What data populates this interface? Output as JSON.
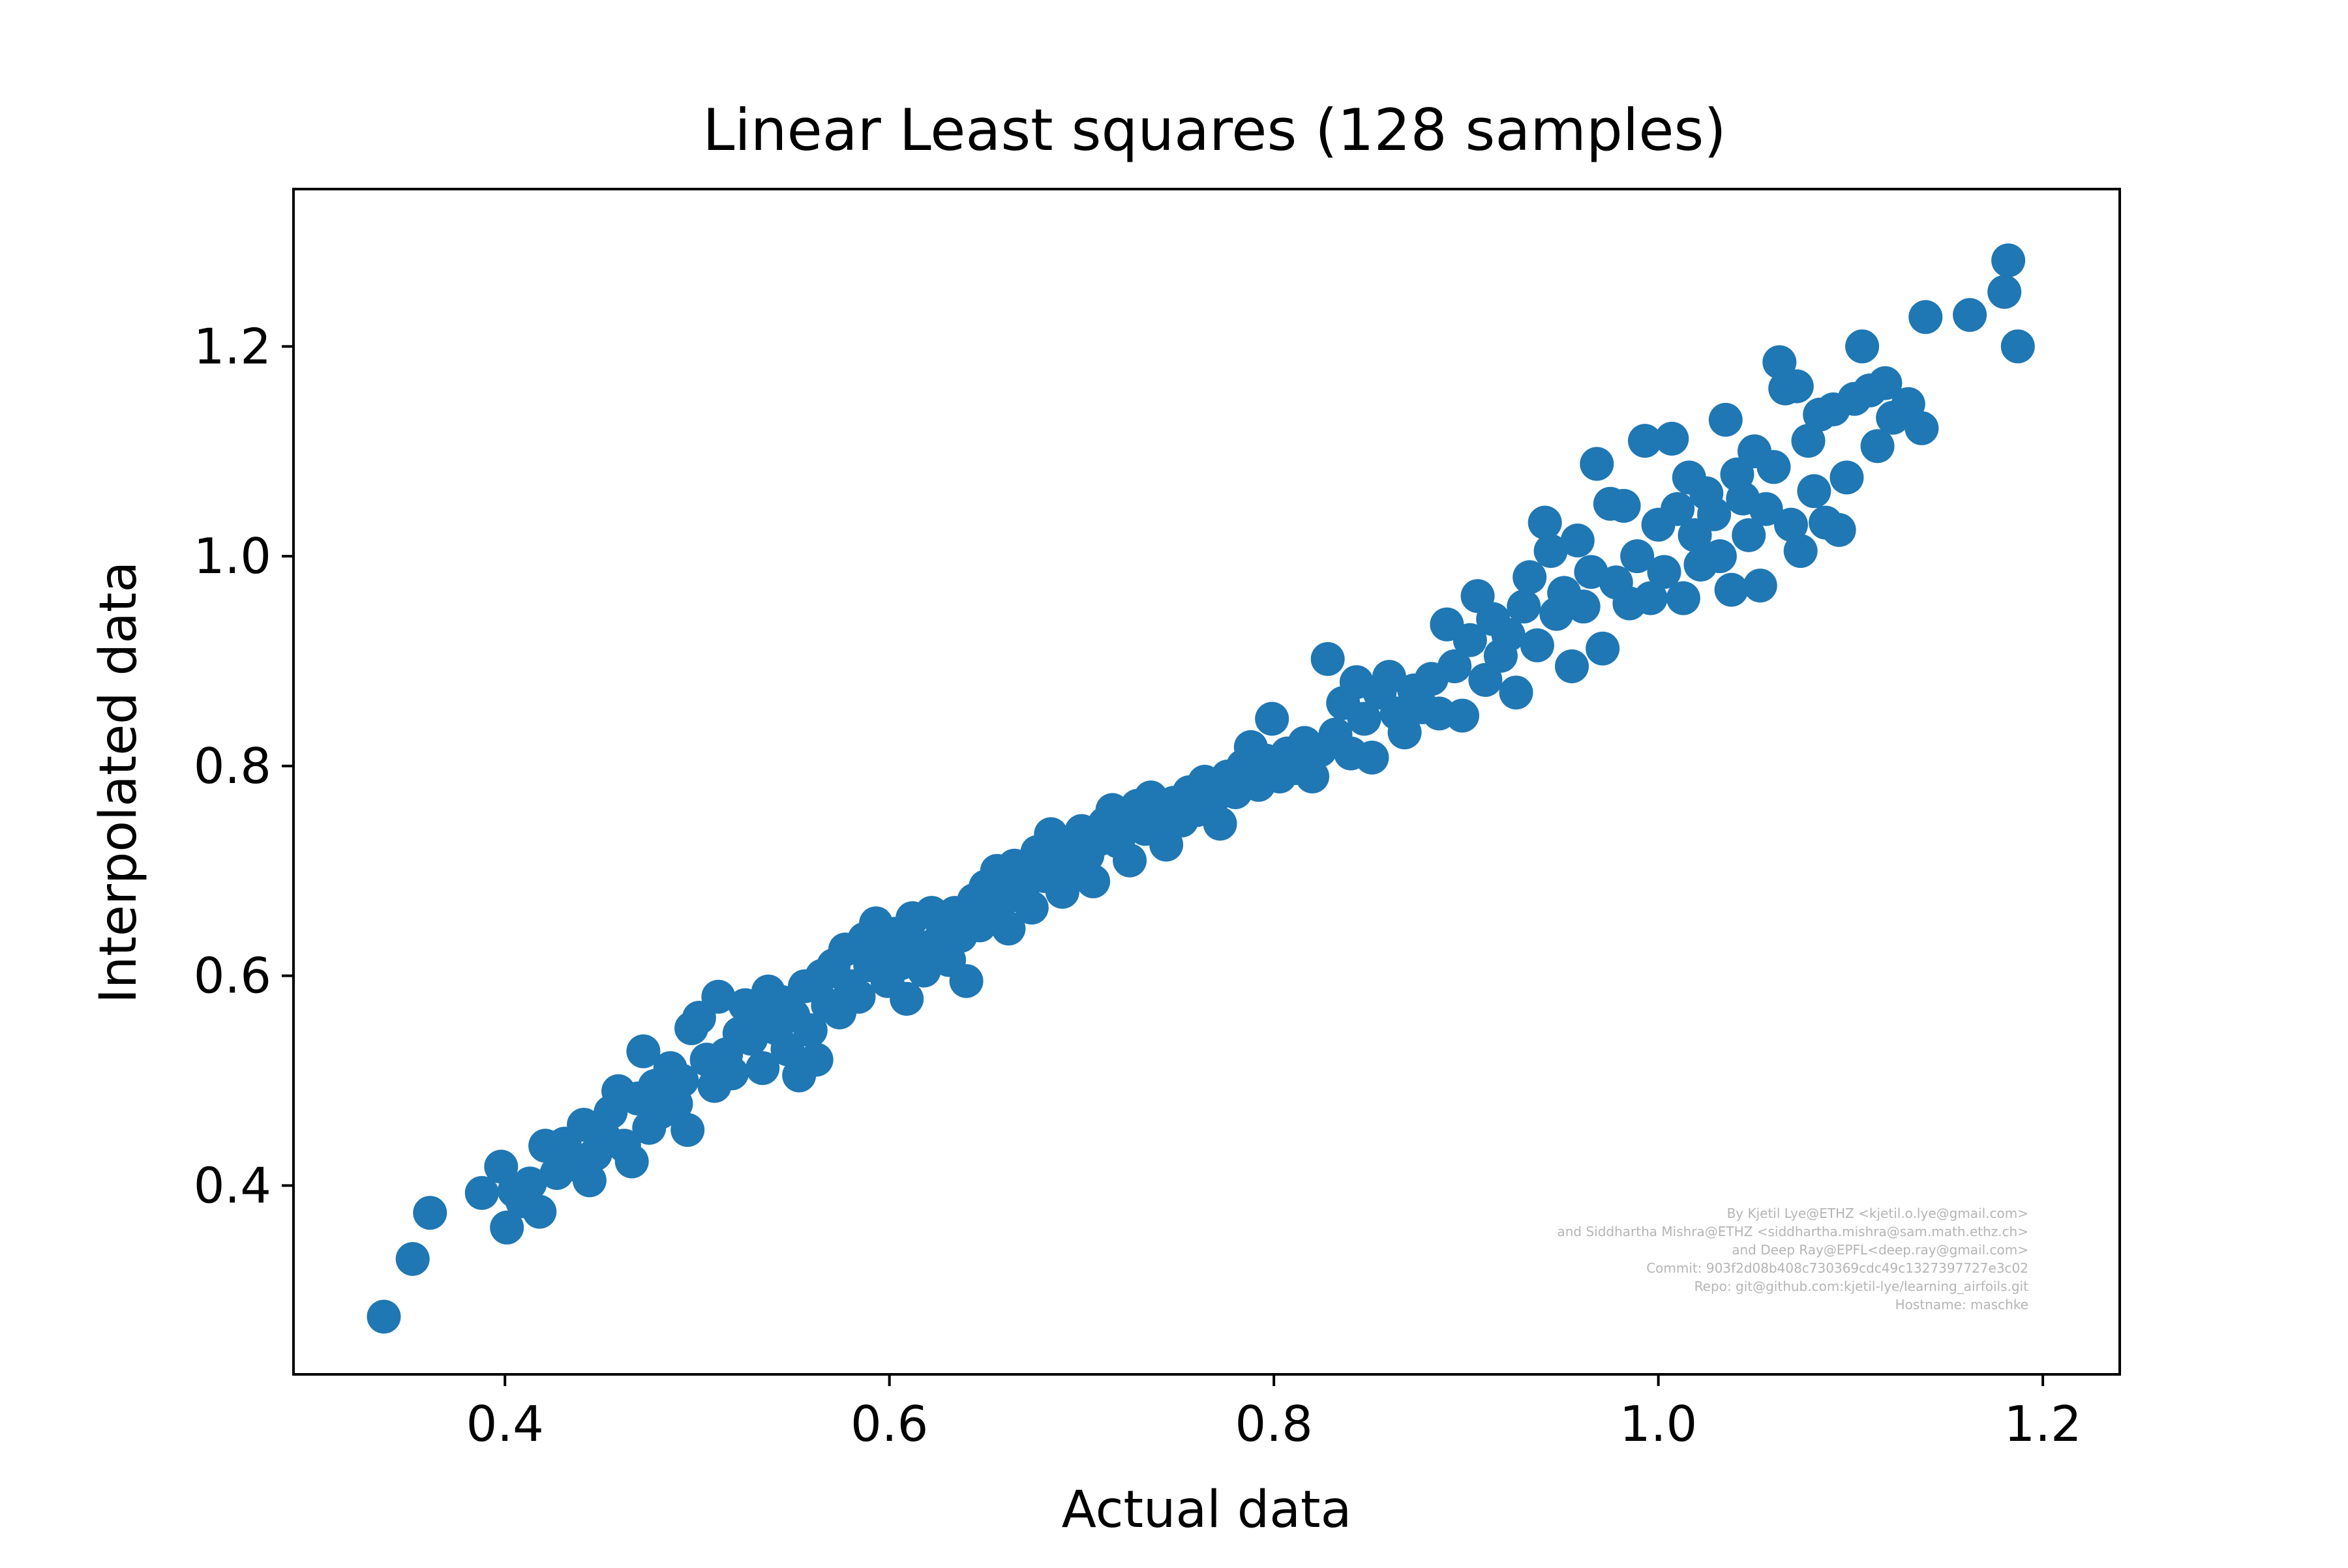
{
  "chart_data": {
    "type": "scatter",
    "title": "Linear Least squares (128 samples)",
    "xlabel": "Actual data",
    "ylabel": "Interpolated data",
    "xlim": [
      0.29,
      1.24
    ],
    "ylim": [
      0.22,
      1.35
    ],
    "xticks": [
      "0.4",
      "0.6",
      "0.8",
      "1.0",
      "1.2"
    ],
    "yticks": [
      "0.4",
      "0.6",
      "0.8",
      "1.0",
      "1.2"
    ],
    "grid": false,
    "legend": "none",
    "series": [
      {
        "color": "#1f77b4",
        "points": [
          [
            0.337,
            0.275
          ],
          [
            0.352,
            0.33
          ],
          [
            0.361,
            0.374
          ],
          [
            0.388,
            0.393
          ],
          [
            0.398,
            0.418
          ],
          [
            0.401,
            0.36
          ],
          [
            0.405,
            0.395
          ],
          [
            0.409,
            0.385
          ],
          [
            0.413,
            0.402
          ],
          [
            0.418,
            0.375
          ],
          [
            0.421,
            0.438
          ],
          [
            0.427,
            0.412
          ],
          [
            0.431,
            0.44
          ],
          [
            0.436,
            0.42
          ],
          [
            0.441,
            0.458
          ],
          [
            0.444,
            0.405
          ],
          [
            0.447,
            0.43
          ],
          [
            0.452,
            0.445
          ],
          [
            0.455,
            0.47
          ],
          [
            0.459,
            0.49
          ],
          [
            0.462,
            0.438
          ],
          [
            0.466,
            0.423
          ],
          [
            0.469,
            0.483
          ],
          [
            0.472,
            0.528
          ],
          [
            0.475,
            0.455
          ],
          [
            0.478,
            0.495
          ],
          [
            0.481,
            0.47
          ],
          [
            0.486,
            0.512
          ],
          [
            0.489,
            0.478
          ],
          [
            0.492,
            0.5
          ],
          [
            0.495,
            0.453
          ],
          [
            0.497,
            0.55
          ],
          [
            0.501,
            0.56
          ],
          [
            0.505,
            0.52
          ],
          [
            0.509,
            0.495
          ],
          [
            0.511,
            0.58
          ],
          [
            0.515,
            0.525
          ],
          [
            0.518,
            0.507
          ],
          [
            0.522,
            0.545
          ],
          [
            0.525,
            0.572
          ],
          [
            0.528,
            0.54
          ],
          [
            0.531,
            0.563
          ],
          [
            0.534,
            0.512
          ],
          [
            0.537,
            0.585
          ],
          [
            0.541,
            0.55
          ],
          [
            0.544,
            0.575
          ],
          [
            0.547,
            0.53
          ],
          [
            0.55,
            0.562
          ],
          [
            0.553,
            0.505
          ],
          [
            0.556,
            0.59
          ],
          [
            0.559,
            0.548
          ],
          [
            0.562,
            0.52
          ],
          [
            0.565,
            0.6
          ],
          [
            0.568,
            0.572
          ],
          [
            0.571,
            0.61
          ],
          [
            0.574,
            0.565
          ],
          [
            0.577,
            0.625
          ],
          [
            0.58,
            0.59
          ],
          [
            0.584,
            0.58
          ],
          [
            0.587,
            0.635
          ],
          [
            0.59,
            0.61
          ],
          [
            0.593,
            0.65
          ],
          [
            0.596,
            0.618
          ],
          [
            0.599,
            0.595
          ],
          [
            0.603,
            0.64
          ],
          [
            0.606,
            0.612
          ],
          [
            0.609,
            0.578
          ],
          [
            0.612,
            0.655
          ],
          [
            0.615,
            0.628
          ],
          [
            0.618,
            0.605
          ],
          [
            0.622,
            0.66
          ],
          [
            0.625,
            0.632
          ],
          [
            0.628,
            0.645
          ],
          [
            0.631,
            0.615
          ],
          [
            0.634,
            0.66
          ],
          [
            0.637,
            0.638
          ],
          [
            0.64,
            0.595
          ],
          [
            0.644,
            0.672
          ],
          [
            0.647,
            0.648
          ],
          [
            0.65,
            0.685
          ],
          [
            0.653,
            0.66
          ],
          [
            0.656,
            0.7
          ],
          [
            0.659,
            0.672
          ],
          [
            0.662,
            0.645
          ],
          [
            0.665,
            0.705
          ],
          [
            0.668,
            0.68
          ],
          [
            0.671,
            0.69
          ],
          [
            0.674,
            0.665
          ],
          [
            0.677,
            0.718
          ],
          [
            0.681,
            0.695
          ],
          [
            0.684,
            0.735
          ],
          [
            0.687,
            0.705
          ],
          [
            0.69,
            0.68
          ],
          [
            0.693,
            0.725
          ],
          [
            0.697,
            0.702
          ],
          [
            0.7,
            0.738
          ],
          [
            0.703,
            0.715
          ],
          [
            0.706,
            0.69
          ],
          [
            0.709,
            0.73
          ],
          [
            0.712,
            0.745
          ],
          [
            0.716,
            0.758
          ],
          [
            0.719,
            0.728
          ],
          [
            0.722,
            0.745
          ],
          [
            0.725,
            0.71
          ],
          [
            0.729,
            0.762
          ],
          [
            0.733,
            0.74
          ],
          [
            0.736,
            0.77
          ],
          [
            0.74,
            0.755
          ],
          [
            0.744,
            0.725
          ],
          [
            0.748,
            0.765
          ],
          [
            0.752,
            0.748
          ],
          [
            0.756,
            0.775
          ],
          [
            0.76,
            0.758
          ],
          [
            0.764,
            0.785
          ],
          [
            0.768,
            0.768
          ],
          [
            0.772,
            0.745
          ],
          [
            0.776,
            0.79
          ],
          [
            0.78,
            0.775
          ],
          [
            0.784,
            0.8
          ],
          [
            0.788,
            0.818
          ],
          [
            0.792,
            0.782
          ],
          [
            0.796,
            0.805
          ],
          [
            0.799,
            0.845
          ],
          [
            0.803,
            0.79
          ],
          [
            0.807,
            0.812
          ],
          [
            0.811,
            0.798
          ],
          [
            0.816,
            0.822
          ],
          [
            0.82,
            0.79
          ],
          [
            0.824,
            0.815
          ],
          [
            0.828,
            0.902
          ],
          [
            0.832,
            0.83
          ],
          [
            0.836,
            0.86
          ],
          [
            0.84,
            0.812
          ],
          [
            0.843,
            0.88
          ],
          [
            0.847,
            0.845
          ],
          [
            0.851,
            0.808
          ],
          [
            0.855,
            0.87
          ],
          [
            0.86,
            0.885
          ],
          [
            0.864,
            0.85
          ],
          [
            0.868,
            0.832
          ],
          [
            0.873,
            0.872
          ],
          [
            0.877,
            0.856
          ],
          [
            0.882,
            0.883
          ],
          [
            0.886,
            0.85
          ],
          [
            0.89,
            0.935
          ],
          [
            0.894,
            0.895
          ],
          [
            0.898,
            0.848
          ],
          [
            0.902,
            0.92
          ],
          [
            0.906,
            0.962
          ],
          [
            0.91,
            0.882
          ],
          [
            0.914,
            0.94
          ],
          [
            0.918,
            0.905
          ],
          [
            0.922,
            0.925
          ],
          [
            0.926,
            0.87
          ],
          [
            0.93,
            0.952
          ],
          [
            0.933,
            0.98
          ],
          [
            0.937,
            0.915
          ],
          [
            0.941,
            1.032
          ],
          [
            0.944,
            1.005
          ],
          [
            0.947,
            0.945
          ],
          [
            0.951,
            0.965
          ],
          [
            0.955,
            0.895
          ],
          [
            0.958,
            1.015
          ],
          [
            0.961,
            0.952
          ],
          [
            0.965,
            0.985
          ],
          [
            0.968,
            1.088
          ],
          [
            0.971,
            0.912
          ],
          [
            0.975,
            1.05
          ],
          [
            0.978,
            0.975
          ],
          [
            0.982,
            1.048
          ],
          [
            0.985,
            0.955
          ],
          [
            0.989,
            1.0
          ],
          [
            0.993,
            1.11
          ],
          [
            0.996,
            0.96
          ],
          [
            1.0,
            1.03
          ],
          [
            1.003,
            0.985
          ],
          [
            1.007,
            1.112
          ],
          [
            1.01,
            1.045
          ],
          [
            1.013,
            0.96
          ],
          [
            1.016,
            1.075
          ],
          [
            1.019,
            1.02
          ],
          [
            1.022,
            0.992
          ],
          [
            1.025,
            1.06
          ],
          [
            1.029,
            1.04
          ],
          [
            1.032,
            1.0
          ],
          [
            1.035,
            1.13
          ],
          [
            1.038,
            0.968
          ],
          [
            1.041,
            1.078
          ],
          [
            1.044,
            1.055
          ],
          [
            1.047,
            1.02
          ],
          [
            1.05,
            1.1
          ],
          [
            1.053,
            0.972
          ],
          [
            1.056,
            1.045
          ],
          [
            1.06,
            1.085
          ],
          [
            1.063,
            1.185
          ],
          [
            1.066,
            1.16
          ],
          [
            1.069,
            1.03
          ],
          [
            1.072,
            1.162
          ],
          [
            1.074,
            1.005
          ],
          [
            1.078,
            1.11
          ],
          [
            1.081,
            1.062
          ],
          [
            1.084,
            1.135
          ],
          [
            1.087,
            1.032
          ],
          [
            1.091,
            1.14
          ],
          [
            1.094,
            1.025
          ],
          [
            1.098,
            1.075
          ],
          [
            1.102,
            1.15
          ],
          [
            1.106,
            1.2
          ],
          [
            1.11,
            1.158
          ],
          [
            1.114,
            1.105
          ],
          [
            1.118,
            1.165
          ],
          [
            1.122,
            1.132
          ],
          [
            1.13,
            1.145
          ],
          [
            1.137,
            1.122
          ],
          [
            1.139,
            1.228
          ],
          [
            1.162,
            1.23
          ],
          [
            1.18,
            1.252
          ],
          [
            1.182,
            1.282
          ],
          [
            1.187,
            1.2
          ]
        ]
      }
    ],
    "annotation_lines": [
      "By Kjetil Lye@ETHZ <kjetil.o.lye@gmail.com>",
      "and Siddhartha Mishra@ETHZ <siddhartha.mishra@sam.math.ethz.ch>",
      "and Deep Ray@EPFL<deep.ray@gmail.com>",
      "Commit: 903f2d08b408c730369cdc49c1327397727e3c02",
      "Repo: git@github.com:kjetil-lye/learning_airfoils.git",
      "Hostname: maschke"
    ]
  }
}
